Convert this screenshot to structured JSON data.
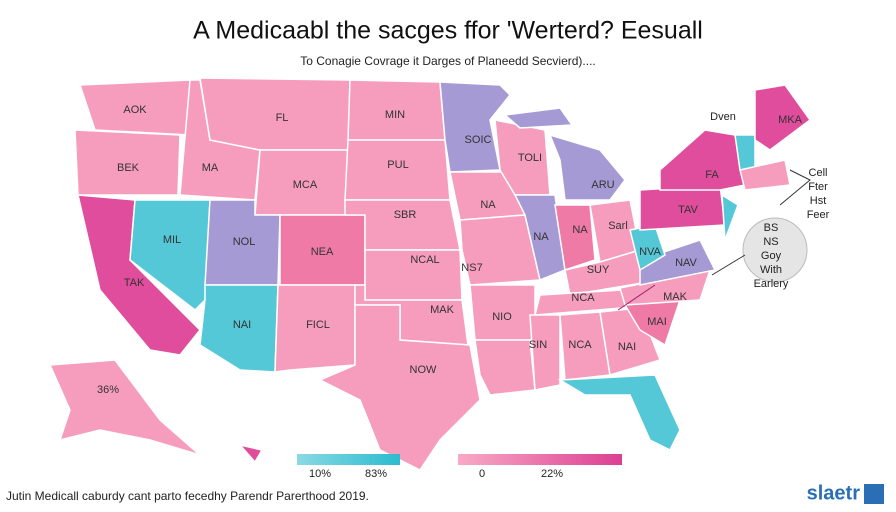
{
  "header": {
    "title": "A Medicaabl the sacges ffor 'Werterd? Eesuall",
    "subtitle": "To Conagie Covrage it Darges of Planeedd Secvierd)...."
  },
  "map": {
    "state_labels": [
      "AOK",
      "FL",
      "MIN",
      "BEK",
      "MA",
      "SOIC",
      "TOLI",
      "PUL",
      "MCA",
      "ARU",
      "FA",
      "TAV",
      "SBR",
      "MIL",
      "NOL",
      "NEA",
      "NA",
      "NA",
      "NA",
      "Sarl",
      "NVA",
      "NAV",
      "TAK",
      "NCAL",
      "NS7",
      "SUY",
      "MAK",
      "MAK",
      "NCA",
      "NAI",
      "FICL",
      "NIO",
      "MAI",
      "SIN",
      "NCA",
      "NAI",
      "NOW",
      "36%",
      "MKA"
    ]
  },
  "callouts": {
    "top": "Dven",
    "side": [
      "Cell",
      "Fter",
      "Hst",
      "Feer"
    ],
    "circle": [
      "BS",
      "NS",
      "Goy",
      "With",
      "Earlery"
    ]
  },
  "legend": {
    "labels": [
      "10%",
      "83%",
      "0",
      "22%"
    ]
  },
  "footer": {
    "source": "Jutin Medicall caburdy cant parto fecedhy Parendr Parerthood 2019.",
    "logo": "slaetr"
  }
}
